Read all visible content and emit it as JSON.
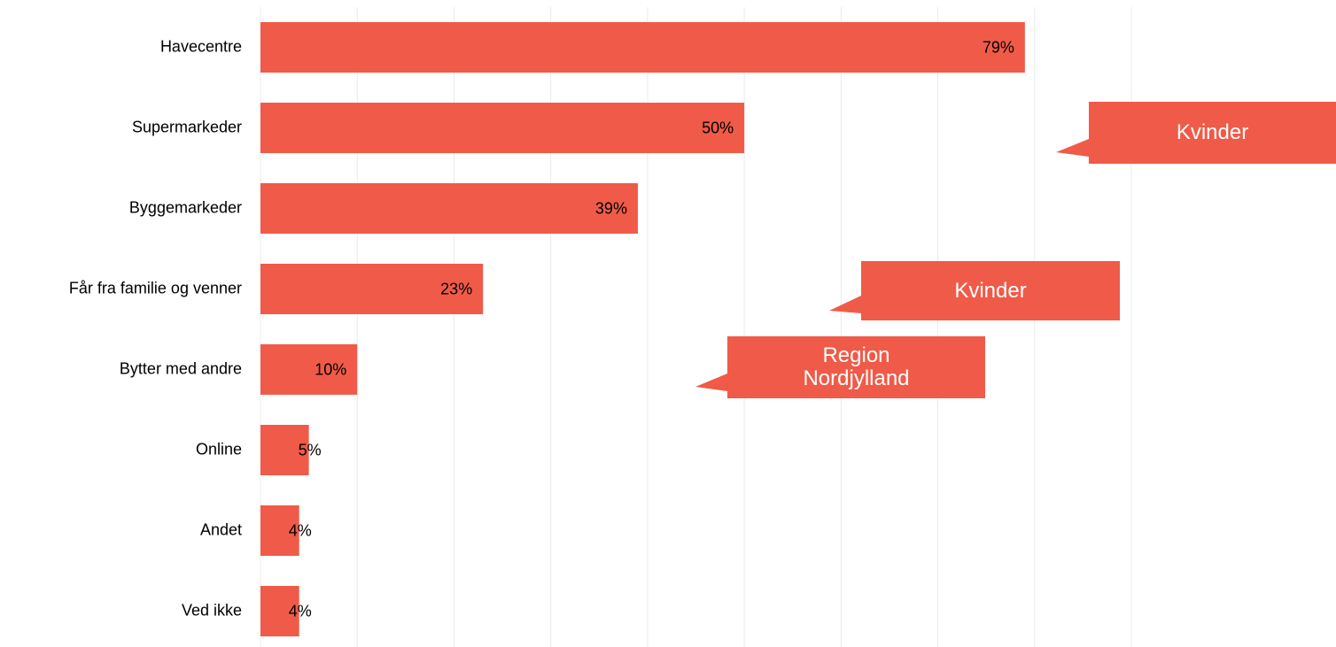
{
  "chart_data": {
    "type": "barh",
    "categories": [
      "Havecentre",
      "Supermarkeder",
      "Byggemarkeder",
      "Får fra familie og venner",
      "Bytter med andre",
      "Online",
      "Andet",
      "Ved ikke"
    ],
    "values": [
      79,
      50,
      39,
      23,
      10,
      5,
      4,
      4
    ],
    "value_labels": [
      "79%",
      "50%",
      "39%",
      "23%",
      "10%",
      "5%",
      "4%",
      "4%"
    ],
    "color": "#ef5b48",
    "xlim": [
      0,
      90
    ],
    "xticks": [
      0,
      10,
      20,
      30,
      40,
      50,
      60,
      70,
      80,
      90
    ],
    "grid": true,
    "annotations": [
      "Kvinder",
      "Kvinder",
      "Region Nordjylland"
    ]
  }
}
